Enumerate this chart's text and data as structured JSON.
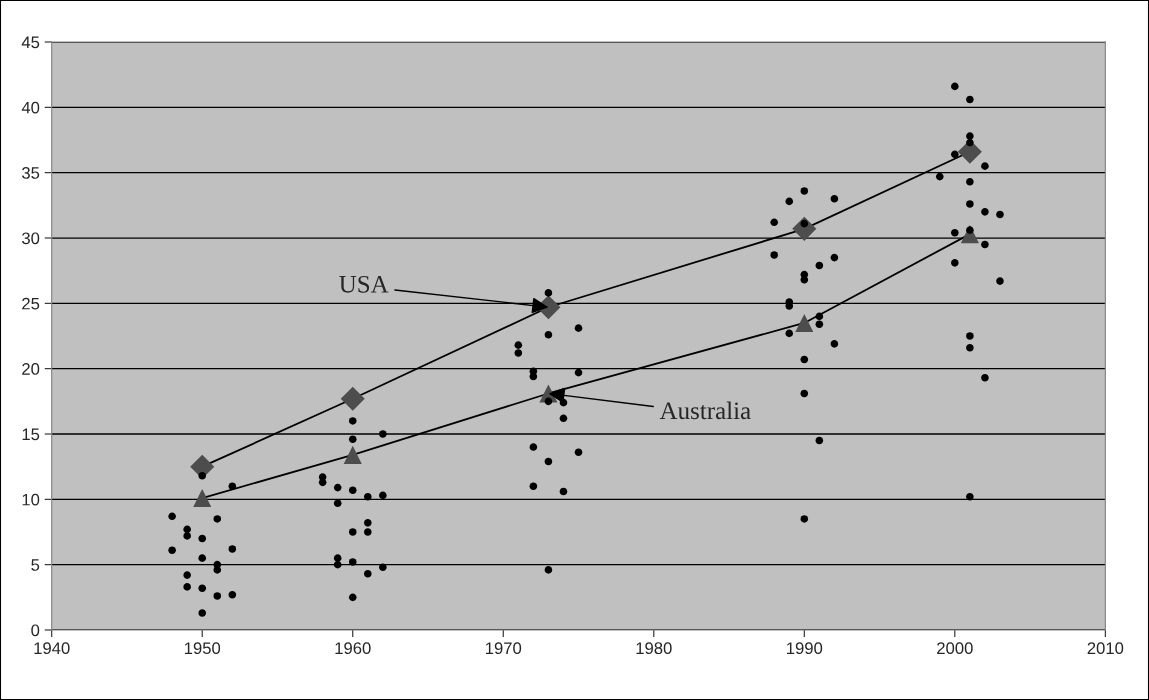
{
  "chart_data": {
    "type": "scatter",
    "series": [
      {
        "color": "#000000",
        "marker": "circle",
        "x": [
          1948,
          1948,
          1949,
          1949,
          1949,
          1949,
          1950,
          1950,
          1950,
          1950,
          1950,
          1951,
          1951,
          1951,
          1951,
          1952,
          1952,
          1952,
          1958,
          1958,
          1959,
          1959,
          1959,
          1959,
          1960,
          1960,
          1960,
          1960,
          1960,
          1960,
          1961,
          1961,
          1961,
          1961,
          1962,
          1962,
          1962,
          1971,
          1971,
          1972,
          1972,
          1972,
          1972,
          1973,
          1973,
          1973,
          1973,
          1973,
          1974,
          1974,
          1974,
          1975,
          1975,
          1975,
          1988,
          1988,
          1989,
          1989,
          1989,
          1989,
          1990,
          1990,
          1990,
          1990,
          1990,
          1990,
          1990,
          1991,
          1991,
          1991,
          1991,
          1992,
          1992,
          1992,
          1999,
          2000,
          2000,
          2000,
          2000,
          2001,
          2001,
          2001,
          2001,
          2001,
          2001,
          2001,
          2001,
          2001,
          2002,
          2002,
          2002,
          2002,
          2003,
          2003
        ],
        "values": [
          8.7,
          6.1,
          7.7,
          7.2,
          4.2,
          3.3,
          11.8,
          7.0,
          5.5,
          3.2,
          1.3,
          8.5,
          5.0,
          4.6,
          2.6,
          11.0,
          6.2,
          2.7,
          11.7,
          11.3,
          10.9,
          9.7,
          5.5,
          5.0,
          16.0,
          14.6,
          10.7,
          7.5,
          5.2,
          2.5,
          10.2,
          8.2,
          7.5,
          4.3,
          15.0,
          10.3,
          4.8,
          21.8,
          21.2,
          19.8,
          19.4,
          14.0,
          11.0,
          25.8,
          22.6,
          17.5,
          12.9,
          4.6,
          17.4,
          16.2,
          10.6,
          23.1,
          19.7,
          13.6,
          31.2,
          28.7,
          32.8,
          25.1,
          24.8,
          22.7,
          33.6,
          31.1,
          27.2,
          26.8,
          20.7,
          18.1,
          8.5,
          27.9,
          24.0,
          23.4,
          14.5,
          33.0,
          28.5,
          21.9,
          34.7,
          41.6,
          36.4,
          30.4,
          28.1,
          40.6,
          37.8,
          37.3,
          34.3,
          32.6,
          30.6,
          22.5,
          21.6,
          10.2,
          35.5,
          32.0,
          29.5,
          19.3,
          31.8,
          26.7
        ]
      },
      {
        "type": "line",
        "color": "#4d4d4d",
        "marker": "diamond",
        "x": [
          1950,
          1960,
          1973,
          1990,
          2001
        ],
        "values": [
          12.5,
          17.7,
          24.7,
          30.7,
          36.6
        ]
      },
      {
        "type": "line",
        "color": "#4d4d4d",
        "marker": "triangle",
        "x": [
          1950,
          1960,
          1973,
          1990,
          2001
        ],
        "values": [
          10.1,
          13.4,
          18.1,
          23.5,
          30.3
        ]
      }
    ],
    "annotations": [
      {
        "text": "USA",
        "x": 1973,
        "y": 24.7
      },
      {
        "text": "Australia",
        "x": 1973,
        "y": 18.1
      }
    ],
    "xlim": [
      1940,
      2010
    ],
    "xticks": [
      1940,
      1950,
      1960,
      1970,
      1980,
      1990,
      2000,
      2010
    ],
    "ylim": [
      0,
      45
    ],
    "yticks": [
      0,
      5,
      10,
      15,
      20,
      25,
      30,
      35,
      40,
      45
    ],
    "grid": "y",
    "legend": false
  }
}
